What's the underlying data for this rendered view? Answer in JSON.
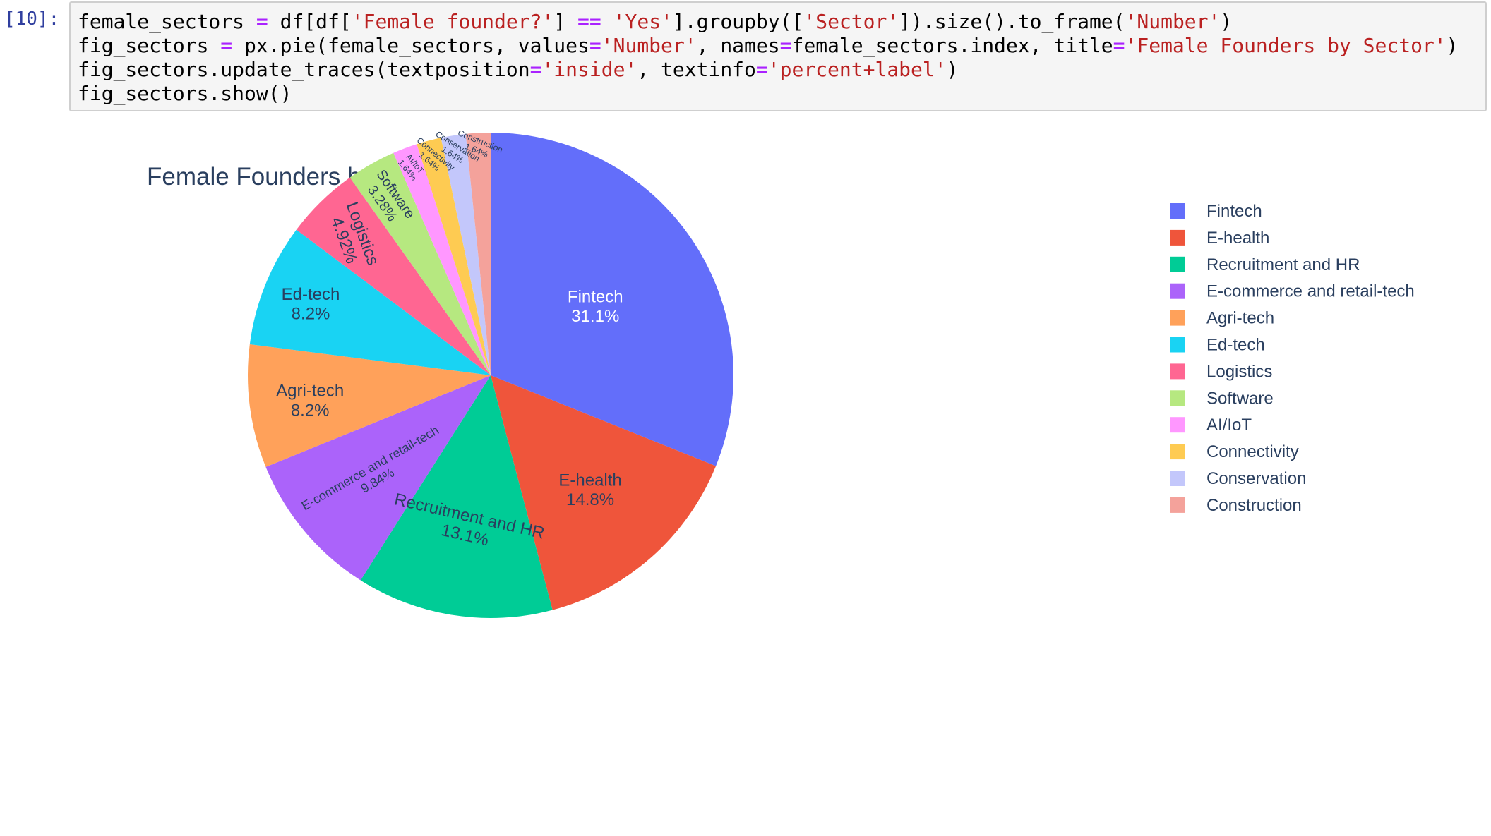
{
  "cell": {
    "prompt": "[10]:",
    "code_lines": [
      [
        {
          "t": "female_sectors ",
          "k": "plain"
        },
        {
          "t": "=",
          "k": "op"
        },
        {
          "t": " df[df[",
          "k": "plain"
        },
        {
          "t": "'Female founder?'",
          "k": "str"
        },
        {
          "t": "] ",
          "k": "plain"
        },
        {
          "t": "==",
          "k": "op"
        },
        {
          "t": " ",
          "k": "plain"
        },
        {
          "t": "'Yes'",
          "k": "str"
        },
        {
          "t": "].groupby([",
          "k": "plain"
        },
        {
          "t": "'Sector'",
          "k": "str"
        },
        {
          "t": "]).size().to_frame(",
          "k": "plain"
        },
        {
          "t": "'Number'",
          "k": "str"
        },
        {
          "t": ")",
          "k": "plain"
        }
      ],
      [
        {
          "t": "fig_sectors ",
          "k": "plain"
        },
        {
          "t": "=",
          "k": "op"
        },
        {
          "t": " px.pie(female_sectors, values",
          "k": "plain"
        },
        {
          "t": "=",
          "k": "op"
        },
        {
          "t": "'Number'",
          "k": "str"
        },
        {
          "t": ", names",
          "k": "plain"
        },
        {
          "t": "=",
          "k": "op"
        },
        {
          "t": "female_sectors.index, title",
          "k": "plain"
        },
        {
          "t": "=",
          "k": "op"
        },
        {
          "t": "'Female Founders by Sector'",
          "k": "str"
        },
        {
          "t": ")",
          "k": "plain"
        }
      ],
      [
        {
          "t": "fig_sectors.update_traces(textposition",
          "k": "plain"
        },
        {
          "t": "=",
          "k": "op"
        },
        {
          "t": "'inside'",
          "k": "str"
        },
        {
          "t": ", textinfo",
          "k": "plain"
        },
        {
          "t": "=",
          "k": "op"
        },
        {
          "t": "'percent+label'",
          "k": "str"
        },
        {
          "t": ")",
          "k": "plain"
        }
      ],
      [
        {
          "t": "fig_sectors.show()",
          "k": "plain"
        }
      ]
    ]
  },
  "colors": {
    "code_string": "#ba2121",
    "code_operator": "#aa22ff",
    "prompt": "#303f9f",
    "title_text": "#2a3f5f"
  },
  "chart_data": {
    "type": "pie",
    "title": "Female Founders by Sector",
    "slices": [
      {
        "label": "Fintech",
        "value": 31.1,
        "pct_text": "31.1%",
        "color": "#636efa",
        "text_color": "#ffffff"
      },
      {
        "label": "E-health",
        "value": 14.8,
        "pct_text": "14.8%",
        "color": "#ef553b",
        "text_color": "#2a3f5f"
      },
      {
        "label": "Recruitment and HR",
        "value": 13.1,
        "pct_text": "13.1%",
        "color": "#00cc96",
        "text_color": "#2a3f5f"
      },
      {
        "label": "E-commerce and retail-tech",
        "value": 9.84,
        "pct_text": "9.84%",
        "color": "#ab63fa",
        "text_color": "#2a3f5f"
      },
      {
        "label": "Agri-tech",
        "value": 8.2,
        "pct_text": "8.2%",
        "color": "#ffa15a",
        "text_color": "#2a3f5f"
      },
      {
        "label": "Ed-tech",
        "value": 8.2,
        "pct_text": "8.2%",
        "color": "#19d3f3",
        "text_color": "#2a3f5f"
      },
      {
        "label": "Logistics",
        "value": 4.92,
        "pct_text": "4.92%",
        "color": "#ff6692",
        "text_color": "#2a3f5f"
      },
      {
        "label": "Software",
        "value": 3.28,
        "pct_text": "3.28%",
        "color": "#b6e880",
        "text_color": "#2a3f5f"
      },
      {
        "label": "AI/IoT",
        "value": 1.64,
        "pct_text": "1.64%",
        "color": "#ff97ff",
        "text_color": "#2a3f5f"
      },
      {
        "label": "Connectivity",
        "value": 1.64,
        "pct_text": "1.64%",
        "color": "#fecb52",
        "text_color": "#2a3f5f"
      },
      {
        "label": "Conservation",
        "value": 1.64,
        "pct_text": "1.64%",
        "color": "#c3c7fb",
        "text_color": "#2a3f5f"
      },
      {
        "label": "Construction",
        "value": 1.64,
        "pct_text": "1.64%",
        "color": "#f4a29b",
        "text_color": "#2a3f5f"
      }
    ],
    "legend_position": "right",
    "direction": "clockwise",
    "start": "top"
  }
}
